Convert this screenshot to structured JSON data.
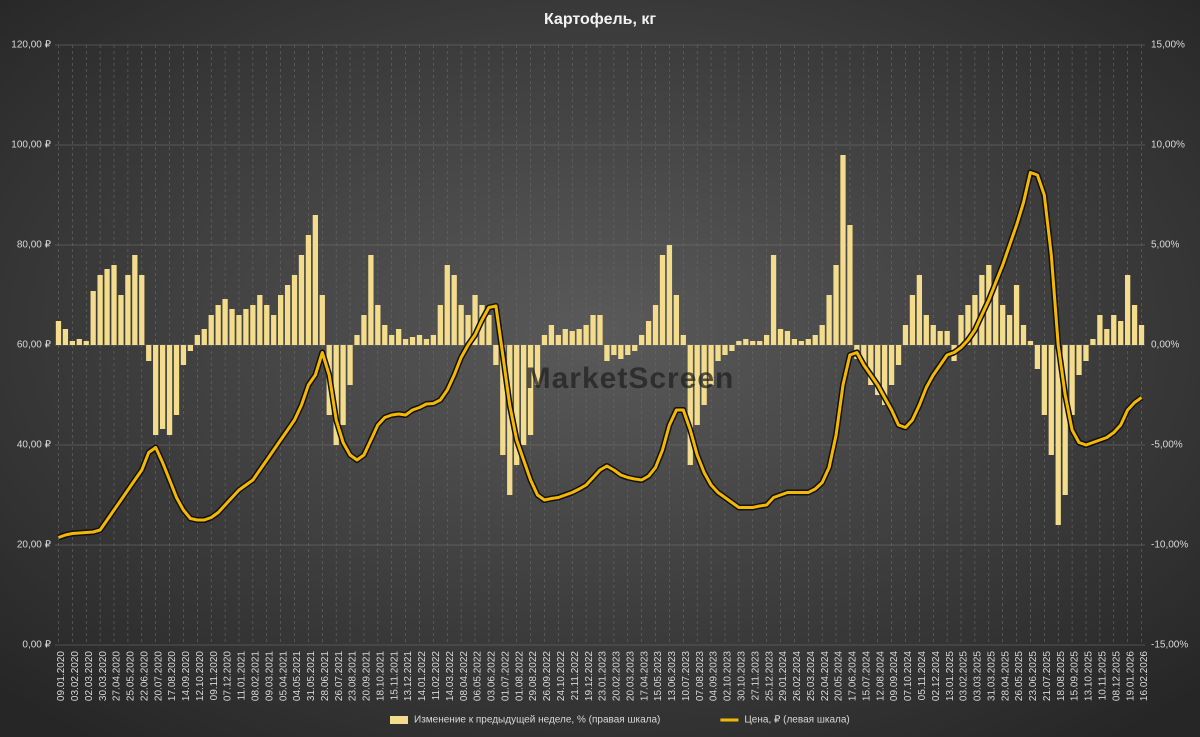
{
  "chart_data": {
    "type": "combo",
    "title": "Картофель, кг",
    "watermark": "MarketScreen",
    "categories": [
      "09.01.2020",
      null,
      "03.02.2020",
      null,
      "02.03.2020",
      null,
      "30.03.2020",
      null,
      "27.04.2020",
      null,
      "25.05.2020",
      null,
      "22.06.2020",
      null,
      "20.07.2020",
      null,
      "17.08.2020",
      null,
      "14.09.2020",
      null,
      "12.10.2020",
      null,
      "09.11.2020",
      null,
      "07.12.2020",
      null,
      "11.01.2021",
      null,
      "08.02.2021",
      null,
      "09.03.2021",
      null,
      "05.04.2021",
      null,
      "04.05.2021",
      null,
      "31.05.2021",
      null,
      "28.06.2021",
      null,
      "26.07.2021",
      null,
      "23.08.2021",
      null,
      "20.09.2021",
      null,
      "18.10.2021",
      null,
      "15.11.2021",
      null,
      "13.12.2021",
      null,
      "14.01.2022",
      null,
      "11.02.2022",
      null,
      "14.03.2022",
      null,
      "08.04.2022",
      null,
      "06.05.2022",
      null,
      "03.06.2022",
      null,
      "01.07.2022",
      null,
      "01.08.2022",
      null,
      "29.08.2022",
      null,
      "26.09.2022",
      null,
      "24.10.2022",
      null,
      "21.11.2022",
      null,
      "19.12.2022",
      null,
      "23.01.2023",
      null,
      "20.02.2023",
      null,
      "20.03.2023",
      null,
      "17.04.2023",
      null,
      "15.05.2023",
      null,
      "13.06.2023",
      null,
      "10.07.2023",
      null,
      "07.08.2023",
      null,
      "04.09.2023",
      null,
      "02.10.2023",
      null,
      "30.10.2023",
      null,
      "27.11.2023",
      null,
      "25.12.2023",
      null,
      "29.01.2024",
      null,
      "26.02.2024",
      null,
      "25.03.2024",
      null,
      "22.04.2024",
      null,
      "20.05.2024",
      null,
      "17.06.2024",
      null,
      "15.07.2024",
      null,
      "12.08.2024",
      null,
      "09.09.2024",
      null,
      "07.10.2024",
      null,
      "05.11.2024",
      null,
      "02.12.2024",
      null,
      "13.01.2025",
      null,
      "03.02.2025",
      null,
      "03.03.2025",
      null,
      "31.03.2025",
      null,
      "28.04.2025",
      null,
      "26.05.2025",
      null,
      "23.06.2025",
      null,
      "21.07.2025",
      null,
      "18.08.2025",
      null,
      "15.09.2025",
      null,
      "13.10.2025",
      null,
      "10.11.2025",
      null,
      "08.12.2025",
      null,
      "19.01.2026",
      null,
      "16.02.2026"
    ],
    "series": [
      {
        "name": "Изменение к предыдущей неделе, % (правая шкала)",
        "type": "bar",
        "axis": "y2",
        "color": "#f3dc8c",
        "values": [
          1.2,
          0.8,
          0.2,
          0.3,
          0.2,
          2.7,
          3.5,
          3.8,
          4.0,
          2.5,
          3.5,
          4.5,
          3.5,
          -0.8,
          -4.5,
          -4.2,
          -4.5,
          -3.5,
          -1.0,
          -0.3,
          0.5,
          0.8,
          1.5,
          2.0,
          2.3,
          1.8,
          1.5,
          1.8,
          2.0,
          2.5,
          2.0,
          1.5,
          2.5,
          3.0,
          3.5,
          4.5,
          5.5,
          6.5,
          2.5,
          -3.5,
          -5.0,
          -4.0,
          -2.0,
          0.5,
          1.5,
          4.5,
          2.0,
          1.0,
          0.5,
          0.8,
          0.3,
          0.4,
          0.5,
          0.3,
          0.5,
          2.0,
          4.0,
          3.5,
          2.0,
          1.5,
          2.5,
          2.0,
          1.5,
          -1.0,
          -5.5,
          -7.5,
          -6.0,
          -5.0,
          -4.5,
          -2.0,
          0.5,
          1.0,
          0.5,
          0.8,
          0.7,
          0.8,
          1.0,
          1.5,
          1.5,
          -0.8,
          -0.5,
          -0.7,
          -0.5,
          -0.3,
          0.5,
          1.2,
          2.0,
          4.5,
          5.0,
          2.5,
          0.5,
          -6.0,
          -4.0,
          -3.0,
          -2.0,
          -0.8,
          -0.5,
          -0.3,
          0.2,
          0.3,
          0.2,
          0.2,
          0.5,
          4.5,
          0.8,
          0.7,
          0.3,
          0.2,
          0.3,
          0.5,
          1.0,
          2.5,
          4.0,
          9.5,
          6.0,
          -0.7,
          -1.0,
          -2.0,
          -2.5,
          -3.0,
          -2.0,
          -1.0,
          1.0,
          2.5,
          3.5,
          1.5,
          1.0,
          0.7,
          0.7,
          -0.8,
          1.5,
          2.0,
          2.5,
          3.5,
          4.0,
          3.0,
          2.0,
          1.5,
          3.0,
          1.0,
          0.2,
          -1.2,
          -3.5,
          -5.5,
          -9.0,
          -7.5,
          -3.5,
          -1.5,
          -0.8,
          0.3,
          1.5,
          0.8,
          1.5,
          1.2,
          3.5,
          2.0,
          1.0
        ]
      },
      {
        "name": "Цена, ₽ (левая шкала)",
        "type": "line",
        "color": "#f5b800",
        "values": [
          21.5,
          22,
          22.3,
          22.4,
          22.5,
          22.6,
          23,
          25,
          27,
          29,
          31,
          33,
          35,
          38.5,
          39.5,
          36.5,
          33,
          29.5,
          27,
          25.3,
          25,
          25,
          25.5,
          26.5,
          28,
          29.5,
          31,
          32,
          33,
          35,
          37,
          39,
          41,
          43,
          45,
          48,
          52,
          54,
          58.5,
          54,
          45,
          40.5,
          38,
          37,
          38,
          41,
          44,
          45.5,
          46,
          46.2,
          46,
          47,
          47.5,
          48.2,
          48.3,
          49,
          51,
          54,
          57.5,
          60,
          62,
          65,
          67.5,
          67.8,
          58,
          48,
          41,
          37,
          33,
          30,
          29,
          29.3,
          29.5,
          30,
          30.5,
          31.2,
          32,
          33.5,
          35,
          35.8,
          35,
          34,
          33.5,
          33.2,
          33,
          33.8,
          35.5,
          39,
          44,
          47,
          47,
          43,
          38,
          34.5,
          32,
          30.5,
          29.5,
          28.5,
          27.5,
          27.5,
          27.5,
          27.8,
          28,
          29.5,
          30,
          30.5,
          30.5,
          30.5,
          30.5,
          31.2,
          32.5,
          35.5,
          42,
          52,
          58,
          58.5,
          56,
          54,
          52,
          49.5,
          47,
          44,
          43.5,
          45,
          48,
          51.5,
          54,
          56,
          58,
          58.5,
          59.5,
          61,
          63,
          66,
          69,
          72.5,
          76,
          80,
          84,
          88.5,
          94.5,
          94,
          90,
          78,
          60,
          50,
          43,
          40.5,
          40,
          40.5,
          41,
          41.5,
          42.5,
          44,
          47,
          48.5,
          49.5
        ]
      }
    ],
    "ylim": [
      0,
      120
    ],
    "yticks": [
      {
        "value": 0,
        "label": "0,00 ₽"
      },
      {
        "value": 20,
        "label": "20,00 ₽"
      },
      {
        "value": 40,
        "label": "40,00 ₽"
      },
      {
        "value": 60,
        "label": "60,00 ₽"
      },
      {
        "value": 80,
        "label": "80,00 ₽"
      },
      {
        "value": 100,
        "label": "100,00 ₽"
      },
      {
        "value": 120,
        "label": "120,00 ₽"
      }
    ],
    "y2lim": [
      -15,
      15
    ],
    "y2ticks": [
      {
        "value": -15,
        "label": "-15,00%"
      },
      {
        "value": -10,
        "label": "-10,00%"
      },
      {
        "value": -5,
        "label": "-5,00%"
      },
      {
        "value": 0,
        "label": "0,00%"
      },
      {
        "value": 5,
        "label": "5,00%"
      },
      {
        "value": 10,
        "label": "10,00%"
      },
      {
        "value": 15,
        "label": "15,00%"
      }
    ],
    "grid": true,
    "legend": "bottom"
  }
}
